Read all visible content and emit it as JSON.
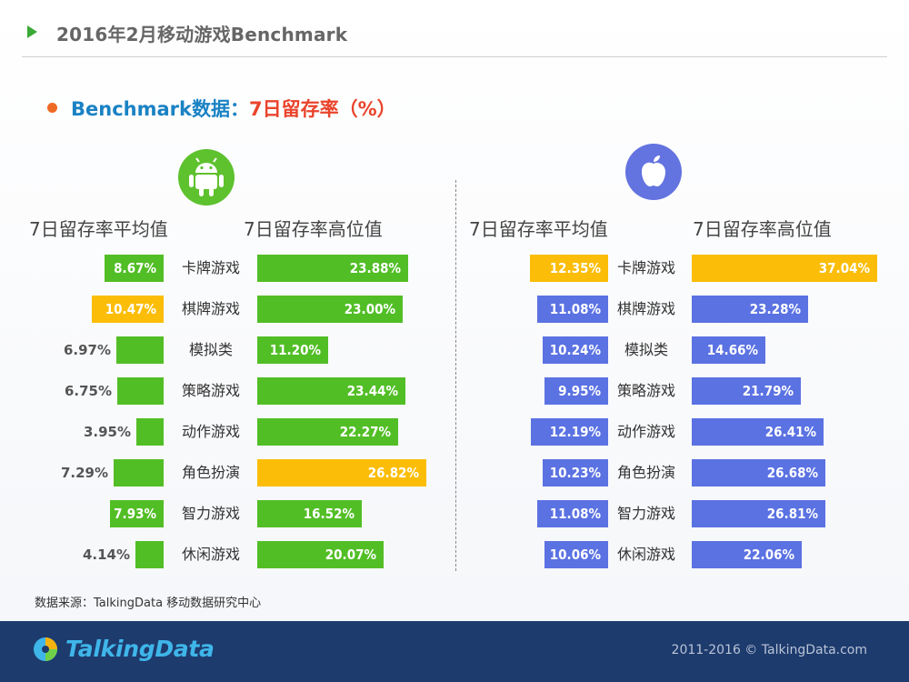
{
  "header": {
    "title": "2016年2月移动游戏Benchmark"
  },
  "section": {
    "title_part1": "Benchmark数据：",
    "title_part2": "7日留存率（%）"
  },
  "colors": {
    "green": "#52be26",
    "yellow": "#fbbd08",
    "blue": "#5b72e2"
  },
  "icons": {
    "android": "android-icon",
    "apple": "apple-icon"
  },
  "chart_data": [
    {
      "type": "bar",
      "platform": "android",
      "categories": [
        "卡牌游戏",
        "棋牌游戏",
        "模拟类",
        "策略游戏",
        "动作游戏",
        "角色扮演",
        "智力游戏",
        "休闲游戏"
      ],
      "headers": {
        "avg": "7日留存率平均值",
        "high": "7日留存率高位值"
      },
      "series": [
        {
          "name": "7日留存率平均值",
          "values": [
            8.67,
            10.47,
            6.97,
            6.75,
            3.95,
            7.29,
            7.93,
            4.14
          ],
          "labels": [
            "8.67%",
            "10.47%",
            "6.97%",
            "6.75%",
            "3.95%",
            "7.29%",
            "7.93%",
            "4.14%"
          ],
          "highlight_index": 1
        },
        {
          "name": "7日留存率高位值",
          "values": [
            23.88,
            23.0,
            11.2,
            23.44,
            22.27,
            26.82,
            16.52,
            20.07
          ],
          "labels": [
            "23.88%",
            "23.00%",
            "11.20%",
            "23.44%",
            "22.27%",
            "26.82%",
            "16.52%",
            "20.07%"
          ],
          "highlight_index": 5
        }
      ]
    },
    {
      "type": "bar",
      "platform": "ios",
      "categories": [
        "卡牌游戏",
        "棋牌游戏",
        "模拟类",
        "策略游戏",
        "动作游戏",
        "角色扮演",
        "智力游戏",
        "休闲游戏"
      ],
      "headers": {
        "avg": "7日留存率平均值",
        "high": "7日留存率高位值"
      },
      "series": [
        {
          "name": "7日留存率平均值",
          "values": [
            12.35,
            11.08,
            10.24,
            9.95,
            12.19,
            10.23,
            11.08,
            10.06
          ],
          "labels": [
            "12.35%",
            "11.08%",
            "10.24%",
            "9.95%",
            "12.19%",
            "10.23%",
            "11.08%",
            "10.06%"
          ],
          "highlight_index": 0
        },
        {
          "name": "7日留存率高位值",
          "values": [
            37.04,
            23.28,
            14.66,
            21.79,
            26.41,
            26.68,
            26.81,
            22.06
          ],
          "labels": [
            "37.04%",
            "23.28%",
            "14.66%",
            "21.79%",
            "26.41%",
            "26.68%",
            "26.81%",
            "22.06%"
          ],
          "highlight_index": 0
        }
      ]
    }
  ],
  "source": "数据来源：TalkingData 移动数据研究中心",
  "footer": {
    "logo_text": "TalkingData",
    "copyright": "2011-2016 © TalkingData.com"
  }
}
